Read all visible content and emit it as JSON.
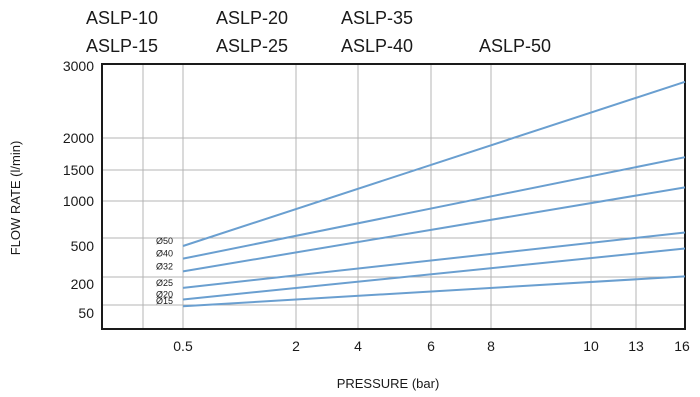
{
  "header": {
    "models": [
      [
        "ASLP-10",
        "ASLP-15"
      ],
      [
        "ASLP-20",
        "ASLP-25"
      ],
      [
        "ASLP-35",
        "ASLP-40"
      ],
      [
        "",
        "ASLP-50"
      ]
    ]
  },
  "chart_data": {
    "type": "line",
    "title": "",
    "xlabel": "PRESSURE (bar)",
    "ylabel": "FLOW RATE  (l/min)",
    "x_ticks": [
      "0.5",
      "2",
      "4",
      "6",
      "8",
      "10",
      "13",
      "16"
    ],
    "y_ticks": [
      "50",
      "200",
      "500",
      "1000",
      "1500",
      "2000",
      "3000"
    ],
    "scale": "nonlinear (tick labels placed at unequal spacing)",
    "grid": true,
    "series": [
      {
        "name": "Ø50",
        "x": [
          0.5,
          16
        ],
        "y": [
          500,
          2780
        ],
        "color": "#6a9fd0"
      },
      {
        "name": "Ø40",
        "x": [
          0.5,
          16
        ],
        "y": [
          400,
          1700
        ],
        "color": "#6a9fd0"
      },
      {
        "name": "Ø32",
        "x": [
          0.5,
          16
        ],
        "y": [
          300,
          1220
        ],
        "color": "#6a9fd0"
      },
      {
        "name": "Ø25",
        "x": [
          0.5,
          16
        ],
        "y": [
          180,
          650
        ],
        "color": "#6a9fd0"
      },
      {
        "name": "Ø20",
        "x": [
          0.5,
          16
        ],
        "y": [
          120,
          480
        ],
        "color": "#6a9fd0"
      },
      {
        "name": "Ø15",
        "x": [
          0.5,
          16
        ],
        "y": [
          85,
          260
        ],
        "color": "#6a9fd0"
      }
    ]
  }
}
